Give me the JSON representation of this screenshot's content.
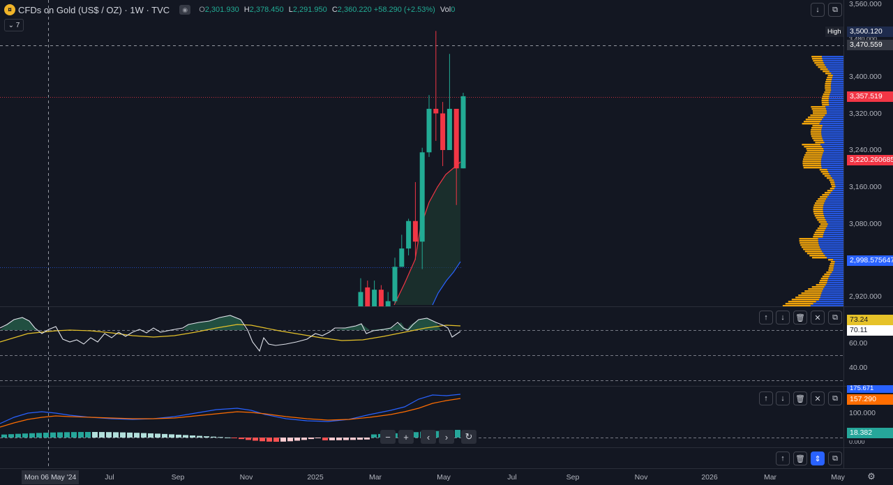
{
  "header": {
    "symbol_icon": "gold-coin-icon",
    "title": "CFDs on Gold (US$ / OZ) · 1W · TVC",
    "ohlc": {
      "o_label": "O",
      "o": "2,301.930",
      "h_label": "H",
      "h": "2,378.450",
      "l_label": "L",
      "l": "2,291.950",
      "c_label": "C",
      "c": "2,360.220",
      "change": "+58.290 (+2.53%)",
      "vol_label": "Vol",
      "vol": "0"
    },
    "collapse_label": "7"
  },
  "top_right_buttons": [
    "arrow-down-icon",
    "restore-icon"
  ],
  "price_axis": {
    "ticks": [
      "3,560.000",
      "3,400.000",
      "3,320.000",
      "3,240.000",
      "3,160.000",
      "3,080.000",
      "2,920.000"
    ],
    "high_tag": "High",
    "labels": {
      "high": "3,500.120",
      "crosshair": "3,470.559",
      "partial_tick": "3,480.000",
      "last_price": "3,357.519",
      "ma_red": "3,220.260685",
      "ma_blue": "2,998.575647"
    }
  },
  "rsi": {
    "ticks": [
      "60.00",
      "40.00"
    ],
    "value": "70.11",
    "ma_value": "73.24"
  },
  "macd": {
    "ticks": [
      "100.000",
      "0.000"
    ],
    "macd_value": "175.671",
    "signal_value": "157.290",
    "hist_value": "18.382"
  },
  "pane_buttons": [
    "arrow-up-icon",
    "arrow-down-icon",
    "trash-icon",
    "collapse-icon",
    "maximize-icon"
  ],
  "bottom_buttons": [
    "arrow-up-icon",
    "trash-icon",
    "chevron-updown-icon",
    "maximize-icon"
  ],
  "zoom_buttons": [
    "minus-icon",
    "plus-icon",
    "chevron-left-icon",
    "chevron-right-icon",
    "reset-icon"
  ],
  "time_axis": {
    "crosshair_date": "Mon 06 May '24",
    "ticks": [
      "Jul",
      "Sep",
      "Nov",
      "2025",
      "Mar",
      "May",
      "Jul",
      "Sep",
      "Nov",
      "2026",
      "Mar",
      "May"
    ]
  },
  "settings_icon": "gear-icon",
  "colors": {
    "background": "#131722",
    "up": "#22ab94",
    "down": "#f23645",
    "ma_red": "#f23645",
    "ma_blue": "#2962ff",
    "rsi_line": "#e0e3eb",
    "rsi_ma": "#e6c229",
    "macd_line": "#2962ff",
    "signal_line": "#ff6d00",
    "volume_profile": "#f0a30a"
  },
  "candles": [
    {
      "date": "2025-02-03",
      "o": 2880,
      "h": 2960,
      "l": 2880,
      "c": 2930
    },
    {
      "date": "2025-02-10",
      "o": 2940,
      "h": 2955,
      "l": 2870,
      "c": 2880
    },
    {
      "date": "2025-02-17",
      "o": 2890,
      "h": 2955,
      "l": 2885,
      "c": 2935
    },
    {
      "date": "2025-02-24",
      "o": 2935,
      "h": 2945,
      "l": 2830,
      "c": 2870
    },
    {
      "date": "2025-03-03",
      "o": 2880,
      "h": 2930,
      "l": 2880,
      "c": 2910
    },
    {
      "date": "2025-03-10",
      "o": 2910,
      "h": 3005,
      "l": 2905,
      "c": 2985
    },
    {
      "date": "2025-03-17",
      "o": 2985,
      "h": 3055,
      "l": 2985,
      "c": 3025
    },
    {
      "date": "2025-03-24",
      "o": 3025,
      "h": 3090,
      "l": 3010,
      "c": 3085
    },
    {
      "date": "2025-03-31",
      "o": 3085,
      "h": 3170,
      "l": 3000,
      "c": 3040
    },
    {
      "date": "2025-04-07",
      "o": 3040,
      "h": 3245,
      "l": 2980,
      "c": 3235
    },
    {
      "date": "2025-04-14",
      "o": 3235,
      "h": 3360,
      "l": 3225,
      "c": 3330
    },
    {
      "date": "2025-04-21",
      "o": 3330,
      "h": 3500,
      "l": 3260,
      "c": 3320
    },
    {
      "date": "2025-04-28",
      "o": 3320,
      "h": 3345,
      "l": 3205,
      "c": 3240
    },
    {
      "date": "2025-05-05",
      "o": 3240,
      "h": 3450,
      "l": 3240,
      "c": 3330
    },
    {
      "date": "2025-05-12",
      "o": 3330,
      "h": 3330,
      "l": 3120,
      "c": 3200
    },
    {
      "date": "2025-05-19",
      "o": 3200,
      "h": 3365,
      "l": 3200,
      "c": 3357.519
    }
  ]
}
